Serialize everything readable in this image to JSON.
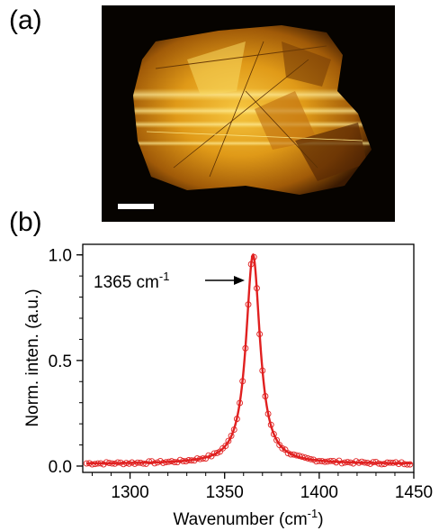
{
  "panels": {
    "a": "(a)",
    "b": "(b)"
  },
  "micrograph": {
    "description_colors": {
      "background": "#050200",
      "flake": "#d08a10",
      "highlight": "#f4d060",
      "scale_bar": "#ffffff"
    }
  },
  "chart_data": {
    "type": "scatter",
    "xlabel": "Wavenumber (cm",
    "xlabel_sup": "-1",
    "xlabel_end": ")",
    "ylabel": "Norm. inten. (a.u.)",
    "xlim": [
      1275,
      1450
    ],
    "ylim": [
      -0.03,
      1.05
    ],
    "xticks": [
      1300,
      1350,
      1400,
      1450
    ],
    "yticks": [
      0.0,
      0.5,
      1.0
    ],
    "ytick_labels": [
      "0.0",
      "0.5",
      "1.0"
    ],
    "annotation": {
      "text": "1365 cm",
      "sup": "-1",
      "x": 1365,
      "y": 1.0
    },
    "color": "#e02020",
    "fit": {
      "model": "lorentzian",
      "center": 1365,
      "fwhm": 9,
      "amplitude": 1.0,
      "baseline": 0.01
    },
    "points": {
      "x_start": 1277,
      "x_end": 1449,
      "step": 1.5
    }
  }
}
